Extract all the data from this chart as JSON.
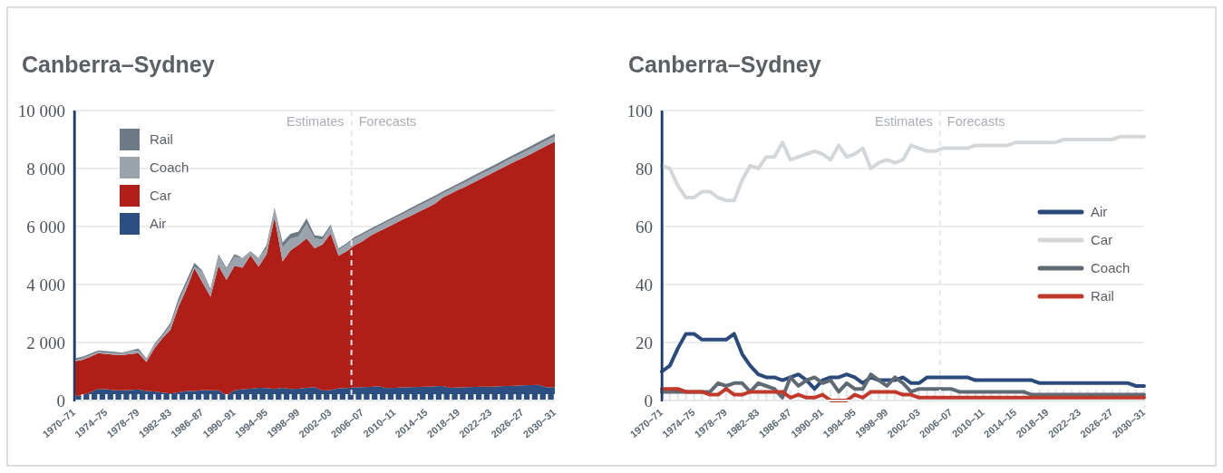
{
  "chart_data": [
    {
      "type": "area",
      "title": "Canberra–Sydney",
      "stacked": true,
      "grid": "y",
      "legend": "top left",
      "categories": [
        "1970–71",
        null,
        null,
        null,
        "1974–75",
        null,
        null,
        null,
        "1978–79",
        null,
        null,
        null,
        "1982–83",
        null,
        null,
        null,
        "1986–87",
        null,
        null,
        null,
        "1990–91",
        null,
        null,
        null,
        "1994–95",
        null,
        null,
        null,
        "1998–99",
        null,
        null,
        null,
        "2002–03",
        null,
        null,
        null,
        "2006–07",
        null,
        null,
        null,
        "2010–11",
        null,
        null,
        null,
        "2014–15",
        null,
        null,
        null,
        "2018–19",
        null,
        null,
        null,
        "2022–23",
        null,
        null,
        null,
        "2026–27",
        null,
        null,
        null,
        "2030–31"
      ],
      "ylim": [
        0,
        10000
      ],
      "yticks": [
        0,
        {
          "value": 2000,
          "label": "2 000"
        },
        {
          "value": 4000,
          "label": "4 000"
        },
        {
          "value": 6000,
          "label": "6 000"
        },
        {
          "value": 8000,
          "label": "8 000"
        },
        {
          "value": 10000,
          "label": "10 000"
        }
      ],
      "annotations": [
        "Estimates",
        "Forecasts"
      ],
      "series": [
        {
          "name": "Air",
          "color": "#2b4f80",
          "values": [
            150,
            180,
            290,
            400,
            390,
            350,
            350,
            360,
            380,
            330,
            310,
            270,
            240,
            280,
            330,
            330,
            360,
            350,
            350,
            180,
            350,
            390,
            410,
            440,
            430,
            400,
            440,
            400,
            410,
            440,
            460,
            340,
            360,
            420,
            430,
            450,
            460,
            470,
            490,
            430,
            440,
            450,
            460,
            470,
            480,
            490,
            500,
            440,
            450,
            460,
            470,
            480,
            480,
            490,
            500,
            510,
            520,
            530,
            540,
            450,
            460
          ]
        },
        {
          "name": "Car",
          "color": "#b01e18",
          "values": [
            1200,
            1220,
            1220,
            1230,
            1210,
            1230,
            1220,
            1240,
            1250,
            1000,
            1490,
            1880,
            2200,
            2950,
            3510,
            4230,
            3710,
            3230,
            4300,
            3980,
            4300,
            4190,
            4600,
            4180,
            4610,
            5910,
            4360,
            4780,
            4960,
            5150,
            4790,
            5040,
            5400,
            4570,
            4720,
            4900,
            5030,
            5220,
            5340,
            5530,
            5660,
            5790,
            5910,
            6040,
            6160,
            6290,
            6500,
            6690,
            6820,
            6940,
            7070,
            7200,
            7340,
            7470,
            7600,
            7730,
            7850,
            7970,
            8110,
            8340,
            8470
          ]
        },
        {
          "name": "Coach",
          "color": "#9ba4ad",
          "values": [
            40,
            50,
            50,
            50,
            50,
            50,
            50,
            100,
            90,
            90,
            120,
            70,
            160,
            180,
            170,
            50,
            360,
            190,
            350,
            370,
            300,
            340,
            150,
            300,
            210,
            270,
            490,
            400,
            290,
            500,
            340,
            170,
            240,
            210,
            220,
            230,
            230,
            180,
            180,
            190,
            190,
            190,
            200,
            200,
            210,
            210,
            140,
            150,
            150,
            150,
            160,
            160,
            160,
            160,
            170,
            170,
            170,
            180,
            180,
            180,
            180
          ]
        },
        {
          "name": "Rail",
          "color": "#6e7a86",
          "values": [
            60,
            60,
            60,
            50,
            50,
            50,
            30,
            30,
            70,
            30,
            40,
            70,
            80,
            110,
            120,
            140,
            40,
            80,
            50,
            50,
            100,
            0,
            0,
            0,
            110,
            70,
            160,
            170,
            170,
            190,
            110,
            110,
            60,
            50,
            50,
            60,
            60,
            60,
            60,
            60,
            60,
            60,
            70,
            70,
            70,
            70,
            70,
            70,
            70,
            80,
            80,
            80,
            80,
            80,
            80,
            80,
            90,
            90,
            90,
            90,
            90
          ]
        }
      ]
    },
    {
      "type": "line",
      "title": "Canberra–Sydney",
      "grid": "y",
      "legend": "right",
      "categories": [
        "1970–71",
        null,
        null,
        null,
        "1974–75",
        null,
        null,
        null,
        "1978–79",
        null,
        null,
        null,
        "1982–83",
        null,
        null,
        null,
        "1986–87",
        null,
        null,
        null,
        "1990–91",
        null,
        null,
        null,
        "1994–95",
        null,
        null,
        null,
        "1998–99",
        null,
        null,
        null,
        "2002–03",
        null,
        null,
        null,
        "2006–07",
        null,
        null,
        null,
        "2010–11",
        null,
        null,
        null,
        "2014–15",
        null,
        null,
        null,
        "2018–19",
        null,
        null,
        null,
        "2022–23",
        null,
        null,
        null,
        "2026–27",
        null,
        null,
        null,
        "2030–31"
      ],
      "ylim": [
        0,
        100
      ],
      "yticks": [
        0,
        20,
        40,
        60,
        80,
        100
      ],
      "annotations": [
        "Estimates",
        "Forecasts"
      ],
      "series": [
        {
          "name": "Air",
          "color": "#2b4a7c",
          "values": [
            10,
            12,
            18,
            23,
            23,
            21,
            21,
            21,
            21,
            23,
            16,
            12,
            9,
            8,
            8,
            7,
            8,
            9,
            7,
            4,
            7,
            8,
            8,
            9,
            8,
            6,
            8,
            7,
            7,
            7,
            8,
            6,
            6,
            8,
            8,
            8,
            8,
            8,
            8,
            7,
            7,
            7,
            7,
            7,
            7,
            7,
            7,
            6,
            6,
            6,
            6,
            6,
            6,
            6,
            6,
            6,
            6,
            6,
            6,
            5,
            5
          ]
        },
        {
          "name": "Car",
          "color": "#d3d7da",
          "values": [
            81,
            80,
            74,
            70,
            70,
            72,
            72,
            70,
            69,
            69,
            76,
            81,
            80,
            84,
            84,
            89,
            83,
            84,
            85,
            86,
            85,
            83,
            88,
            84,
            85,
            87,
            80,
            82,
            83,
            82,
            83,
            88,
            87,
            86,
            86,
            87,
            87,
            87,
            87,
            88,
            88,
            88,
            88,
            88,
            89,
            89,
            89,
            89,
            89,
            89,
            90,
            90,
            90,
            90,
            90,
            90,
            90,
            91,
            91,
            91,
            91
          ]
        },
        {
          "name": "Coach",
          "color": "#5f6b74",
          "values": [
            3,
            3,
            3,
            3,
            3,
            3,
            3,
            6,
            5,
            6,
            6,
            3,
            6,
            5,
            4,
            1,
            8,
            5,
            7,
            8,
            6,
            7,
            3,
            6,
            4,
            4,
            9,
            7,
            5,
            8,
            6,
            3,
            4,
            4,
            4,
            4,
            4,
            3,
            3,
            3,
            3,
            3,
            3,
            3,
            3,
            3,
            2,
            2,
            2,
            2,
            2,
            2,
            2,
            2,
            2,
            2,
            2,
            2,
            2,
            2,
            2
          ]
        },
        {
          "name": "Rail",
          "color": "#c0392b",
          "values": [
            4,
            4,
            4,
            3,
            3,
            3,
            2,
            2,
            4,
            2,
            2,
            3,
            3,
            3,
            3,
            3,
            1,
            2,
            1,
            1,
            2,
            0,
            0,
            0,
            2,
            1,
            3,
            3,
            3,
            3,
            2,
            2,
            1,
            1,
            1,
            1,
            1,
            1,
            1,
            1,
            1,
            1,
            1,
            1,
            1,
            1,
            1,
            1,
            1,
            1,
            1,
            1,
            1,
            1,
            1,
            1,
            1,
            1,
            1,
            1,
            1
          ]
        }
      ]
    }
  ]
}
